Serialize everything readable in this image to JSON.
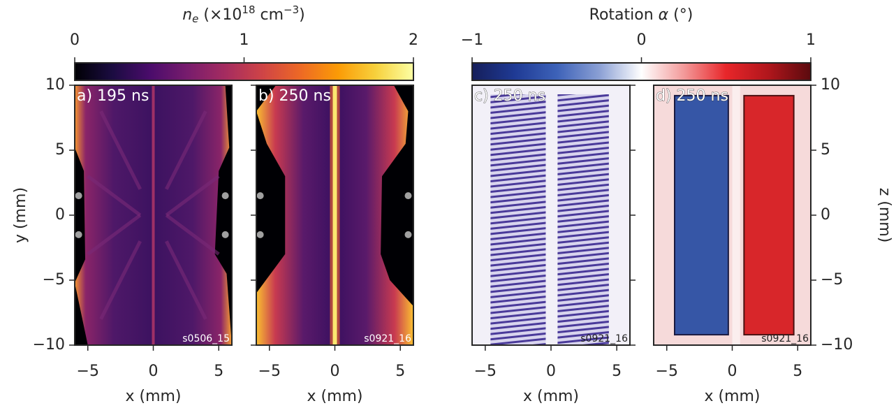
{
  "chart_data": [
    {
      "type": "colorbar",
      "label": [
        "n",
        "e",
        " (×10",
        "18",
        " cm",
        "−3",
        ")"
      ],
      "xlim": [
        0,
        2
      ],
      "xticks": [
        0,
        1,
        2
      ],
      "colors": [
        "#000004",
        "#1b0c41",
        "#4a0c6b",
        "#781c6d",
        "#a52c60",
        "#cf4446",
        "#ed6925",
        "#fb9b06",
        "#f7d13d",
        "#fcffa4"
      ]
    },
    {
      "type": "colorbar",
      "label": [
        "Rotation ",
        "α",
        " (°)"
      ],
      "xlim": [
        -1,
        1
      ],
      "xticks": [
        {
          "value": -1,
          "label": "−1"
        },
        0,
        1
      ],
      "colors": [
        "#151e5a",
        "#1f3a94",
        "#3d62b8",
        "#8a9fd4",
        "#ffffff",
        "#f39a9a",
        "#e8262a",
        "#b0161c",
        "#5a0a0e"
      ]
    },
    {
      "type": "image",
      "panel_label": "a) 195 ns",
      "shot": "s0506_15",
      "xlabel": "x (mm)",
      "ylabel": "y (mm)",
      "xlim": [
        -6,
        6
      ],
      "ylim": [
        -10,
        10
      ],
      "xticks": [
        {
          "value": -5,
          "label": "−5"
        },
        0,
        5
      ],
      "yticks": [
        {
          "value": -10,
          "label": "−10"
        },
        {
          "value": -5,
          "label": "−5"
        },
        0,
        5,
        10
      ],
      "ytick_side": "left",
      "ytick_labels": true,
      "markers": {
        "x": [
          -5.7,
          -5.7,
          5.5,
          5.5
        ],
        "y": [
          1.5,
          -1.5,
          1.5,
          -1.5
        ],
        "color": "#a0a0a0"
      }
    },
    {
      "type": "image",
      "panel_label": "b) 250 ns",
      "shot": "s0921_16",
      "xlabel": "x (mm)",
      "xlim": [
        -6,
        6
      ],
      "ylim": [
        -10,
        10
      ],
      "xticks": [
        {
          "value": -5,
          "label": "−5"
        },
        0,
        5
      ],
      "yticks": [
        {
          "value": -10,
          "label": "−10"
        },
        {
          "value": -5,
          "label": "−5"
        },
        0,
        5,
        10
      ],
      "ytick_side": "left",
      "ytick_labels": false,
      "markers": {
        "x": [
          -5.7,
          -5.7,
          5.6,
          5.6
        ],
        "y": [
          1.5,
          -1.5,
          1.5,
          -1.5
        ],
        "color": "#a0a0a0"
      }
    },
    {
      "type": "image",
      "panel_label": "c) 250 ns",
      "shot": "s0921_16",
      "xlabel": "x (mm)",
      "xlim": [
        -6,
        6
      ],
      "ylim": [
        -10,
        10
      ],
      "xticks": [
        {
          "value": -5,
          "label": "−5"
        },
        0,
        5
      ],
      "yticks": [
        {
          "value": -10,
          "label": "−10"
        },
        {
          "value": -5,
          "label": "−5"
        },
        0,
        5,
        10
      ],
      "ytick_side": "right",
      "ytick_labels": false
    },
    {
      "type": "image",
      "panel_label": "d) 250 ns",
      "shot": "s0921_16",
      "xlabel": "x (mm)",
      "ylabel": "z (mm)",
      "xlim": [
        -6,
        6
      ],
      "ylim": [
        -10,
        10
      ],
      "xticks": [
        {
          "value": -5,
          "label": "−5"
        },
        0,
        5
      ],
      "yticks": [
        {
          "value": -10,
          "label": "−10"
        },
        {
          "value": -5,
          "label": "−5"
        },
        0,
        5,
        10
      ],
      "ytick_side": "right",
      "ytick_labels": true
    }
  ]
}
